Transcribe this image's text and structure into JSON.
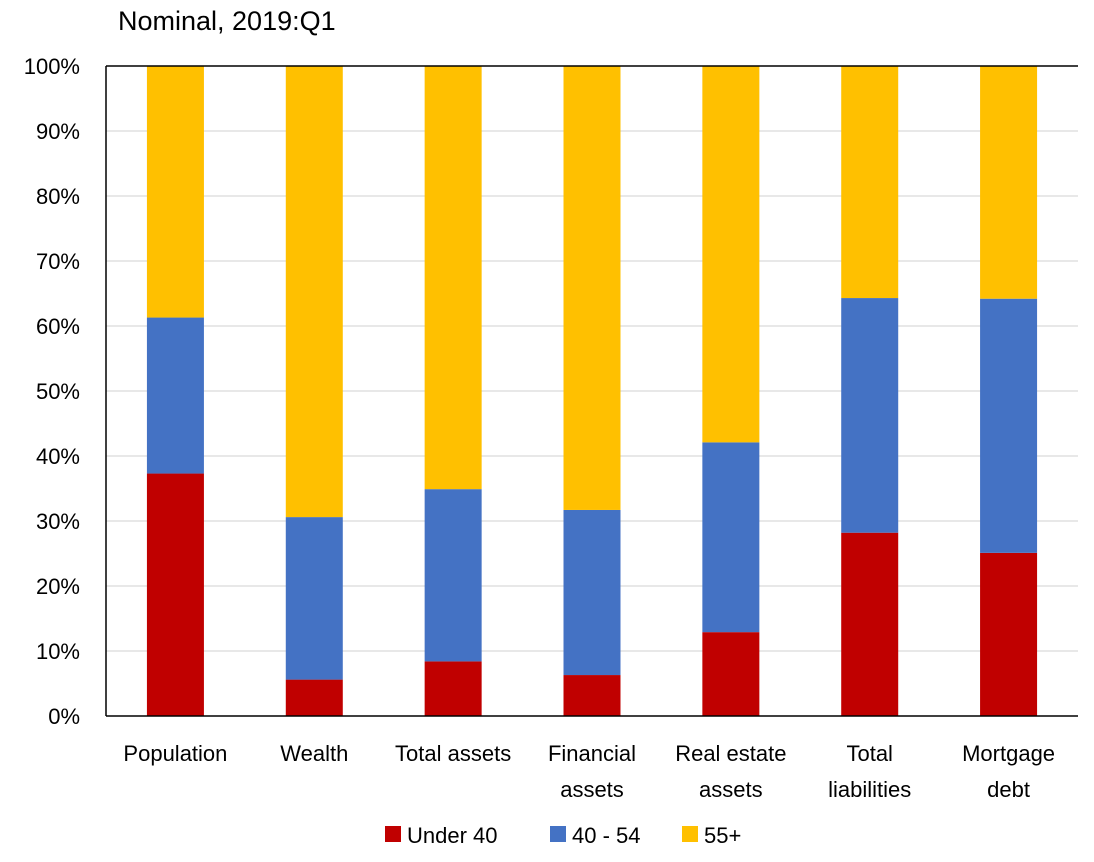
{
  "chart_data": {
    "type": "bar",
    "stacked": true,
    "title": "Nominal, 2019:Q1",
    "xlabel": "",
    "ylabel": "",
    "ylim": [
      0,
      100
    ],
    "y_ticks": [
      "0%",
      "10%",
      "20%",
      "30%",
      "40%",
      "50%",
      "60%",
      "70%",
      "80%",
      "90%",
      "100%"
    ],
    "y_tick_values": [
      0,
      10,
      20,
      30,
      40,
      50,
      60,
      70,
      80,
      90,
      100
    ],
    "grid": true,
    "legend_position": "bottom",
    "categories": [
      [
        "Population"
      ],
      [
        "Wealth"
      ],
      [
        "Total assets"
      ],
      [
        "Financial",
        "assets"
      ],
      [
        "Real estate",
        "assets"
      ],
      [
        "Total",
        "liabilities"
      ],
      [
        "Mortgage",
        "debt"
      ]
    ],
    "series": [
      {
        "name": "Under 40",
        "color": "#c00000",
        "values": [
          37.3,
          5.6,
          8.4,
          6.3,
          12.9,
          28.2,
          25.1
        ]
      },
      {
        "name": "40 - 54",
        "color": "#4472c4",
        "values": [
          24.0,
          25.0,
          26.5,
          25.4,
          29.2,
          36.1,
          39.1
        ]
      },
      {
        "name": "55+",
        "color": "#ffc000",
        "values": [
          38.7,
          69.4,
          65.1,
          68.3,
          57.9,
          35.7,
          35.8
        ]
      }
    ]
  }
}
